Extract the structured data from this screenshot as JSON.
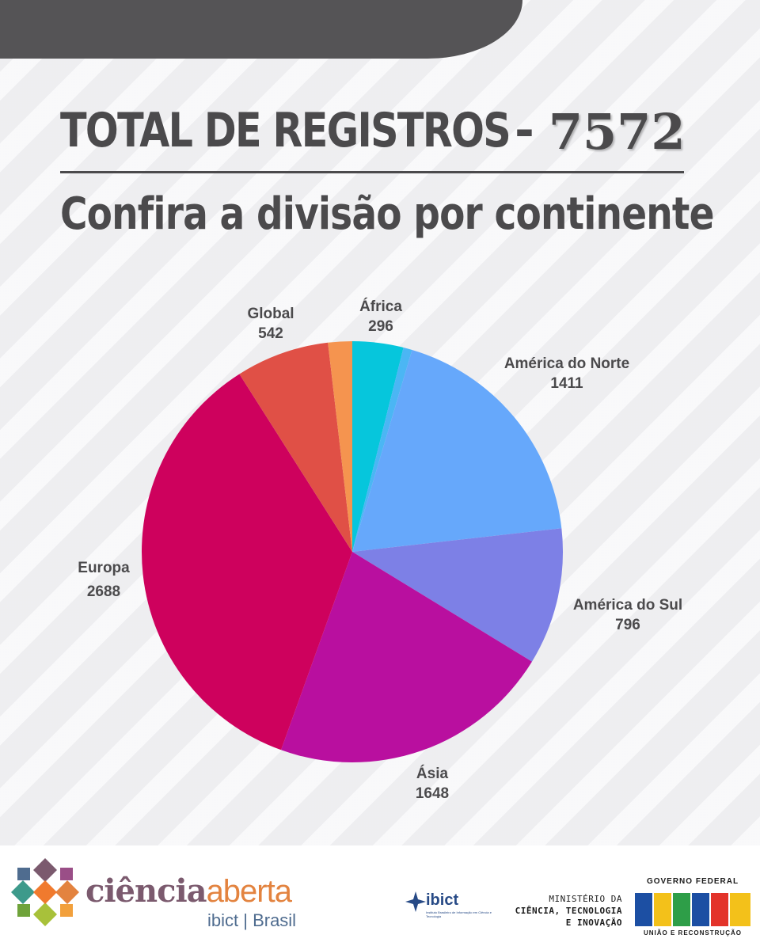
{
  "header": {
    "title": "TOTAL DE REGISTROS",
    "separator": "-",
    "total": "7572",
    "subtitle": "Confira a divisão por continente"
  },
  "chart_data": {
    "type": "pie",
    "categories": [
      "África",
      "",
      "América do Norte",
      "América do Sul",
      "Ásia",
      "Europa",
      "Global",
      ""
    ],
    "values": [
      296,
      51,
      1411,
      796,
      1648,
      2688,
      542,
      140
    ],
    "labels_shown": [
      {
        "name": "África",
        "value": "296"
      },
      {
        "name": "América do Norte",
        "value": "1411"
      },
      {
        "name": "América do Sul",
        "value": "796"
      },
      {
        "name": "Ásia",
        "value": "1648"
      },
      {
        "name": "Europa",
        "value": "2688"
      },
      {
        "name": "Global",
        "value": "542"
      }
    ],
    "colors": [
      "#06c6dc",
      "#4bb6f4",
      "#66a8fb",
      "#7d80e6",
      "#b90f9f",
      "#ce015d",
      "#e05046",
      "#f5944f"
    ]
  },
  "footer": {
    "ciencia_word": "ciência",
    "aberta_word": "aberta",
    "ibict_brasil": "ibict | Brasil",
    "ibict_name": "ibict",
    "ibict_tagline": "Instituto Brasileiro de Informação em Ciência e Tecnologia",
    "ministry_line1": "MINISTÉRIO DA",
    "ministry_line2": "CIÊNCIA, TECNOLOGIA",
    "ministry_line3": "E INOVAÇÃO",
    "gov_top": "GOVERNO FEDERAL",
    "gov_brasil": "BRASIL",
    "gov_bottom": "UNIÃO E RECONSTRUÇÃO"
  }
}
